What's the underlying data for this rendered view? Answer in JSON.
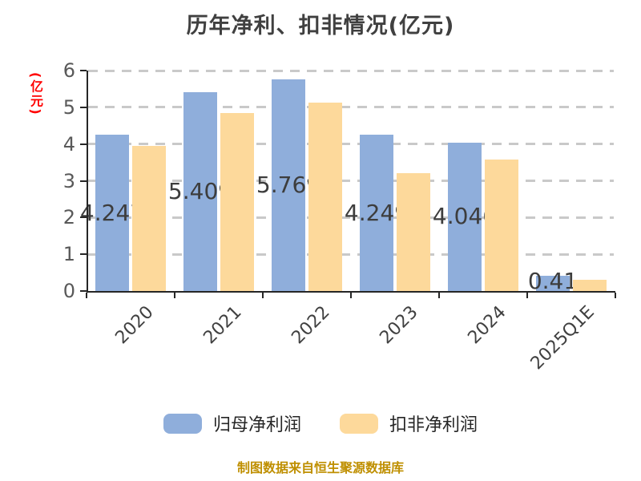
{
  "chart_data": {
    "type": "bar",
    "title": "历年净利、扣非情况(亿元)",
    "ylabel": "(亿元)",
    "categories": [
      "2020",
      "2021",
      "2022",
      "2023",
      "2024",
      "2025Q1E"
    ],
    "series": [
      {
        "key": "parent-net-profit",
        "name": "归母净利润",
        "color": "#8FAEDB",
        "values": [
          4.247,
          5.409,
          5.769,
          4.249,
          4.046,
          0.41
        ],
        "value_labels": [
          "4.247",
          "5.409",
          "5.769",
          "4.249",
          "4.046",
          "0.41"
        ]
      },
      {
        "key": "deducted-net-profit",
        "name": "扣非净利润",
        "color": "#FDD99B",
        "values": [
          3.95,
          4.85,
          5.13,
          3.2,
          3.58,
          0.3
        ],
        "value_labels": null
      }
    ],
    "ylim": [
      0,
      6
    ],
    "yticks": [
      "0",
      "1",
      "2",
      "3",
      "4",
      "5",
      "6"
    ],
    "grid": {
      "horizontal": true,
      "style": "dashed",
      "color": "#C9C9C9"
    },
    "legend_position": "bottom",
    "source_note": "制图数据来自恒生聚源数据库"
  },
  "styles": {
    "background": "#FFFFFF",
    "title_color": "#404040",
    "axis_color": "#262626",
    "y_tick_label_color": "#595959",
    "x_tick_label_color": "#404040",
    "value_label_color": "#3D3D3D",
    "ylabel_color": "#FF0000",
    "legend_label_color": "#262626",
    "source_note_color": "#BF8F00"
  }
}
